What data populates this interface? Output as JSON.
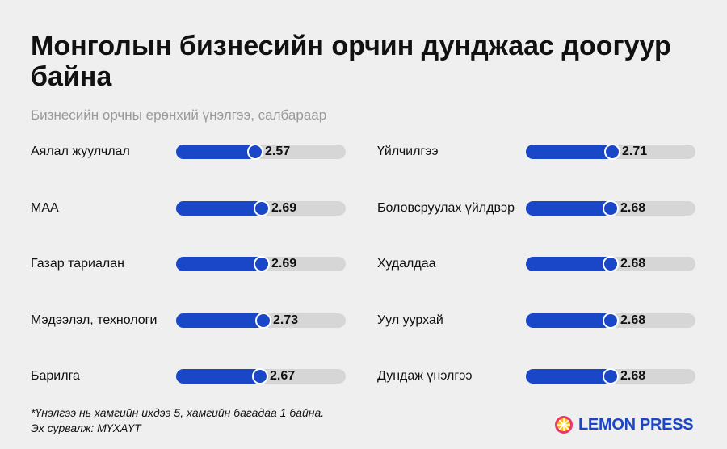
{
  "header": {
    "title": "Монголын бизнесийн орчин дунджаас доогуур байна",
    "subtitle": "Бизнесийн орчны ерөнхий үнэлгээ, салбараар"
  },
  "footer": {
    "note": "*Үнэлгээ нь хамгийн ихдээ 5, хамгийн багадаа 1 байна.",
    "source": "Эх сурвалж: МҮХАҮТ",
    "brand": "LEMON PRESS"
  },
  "colors": {
    "bar": "#1a47c8",
    "track": "#d6d6d6",
    "background": "#efefef",
    "subtitle": "#9a9a9a"
  },
  "chart_data": {
    "type": "bar",
    "orientation": "horizontal",
    "xlim": [
      1,
      5
    ],
    "grid": false,
    "columns": [
      {
        "categories": [
          "Аялал жуулчлал",
          "МАА",
          "Газар тариалан",
          "Мэдээлэл, технологи",
          "Барилга"
        ],
        "values": [
          2.57,
          2.69,
          2.69,
          2.73,
          2.67
        ]
      },
      {
        "categories": [
          "Үйлчилгээ",
          "Боловсруулах үйлдвэр",
          "Худалдаа",
          "Уул уурхай",
          "Дундаж үнэлгээ"
        ],
        "values": [
          2.71,
          2.68,
          2.68,
          2.68,
          2.68
        ]
      }
    ]
  }
}
